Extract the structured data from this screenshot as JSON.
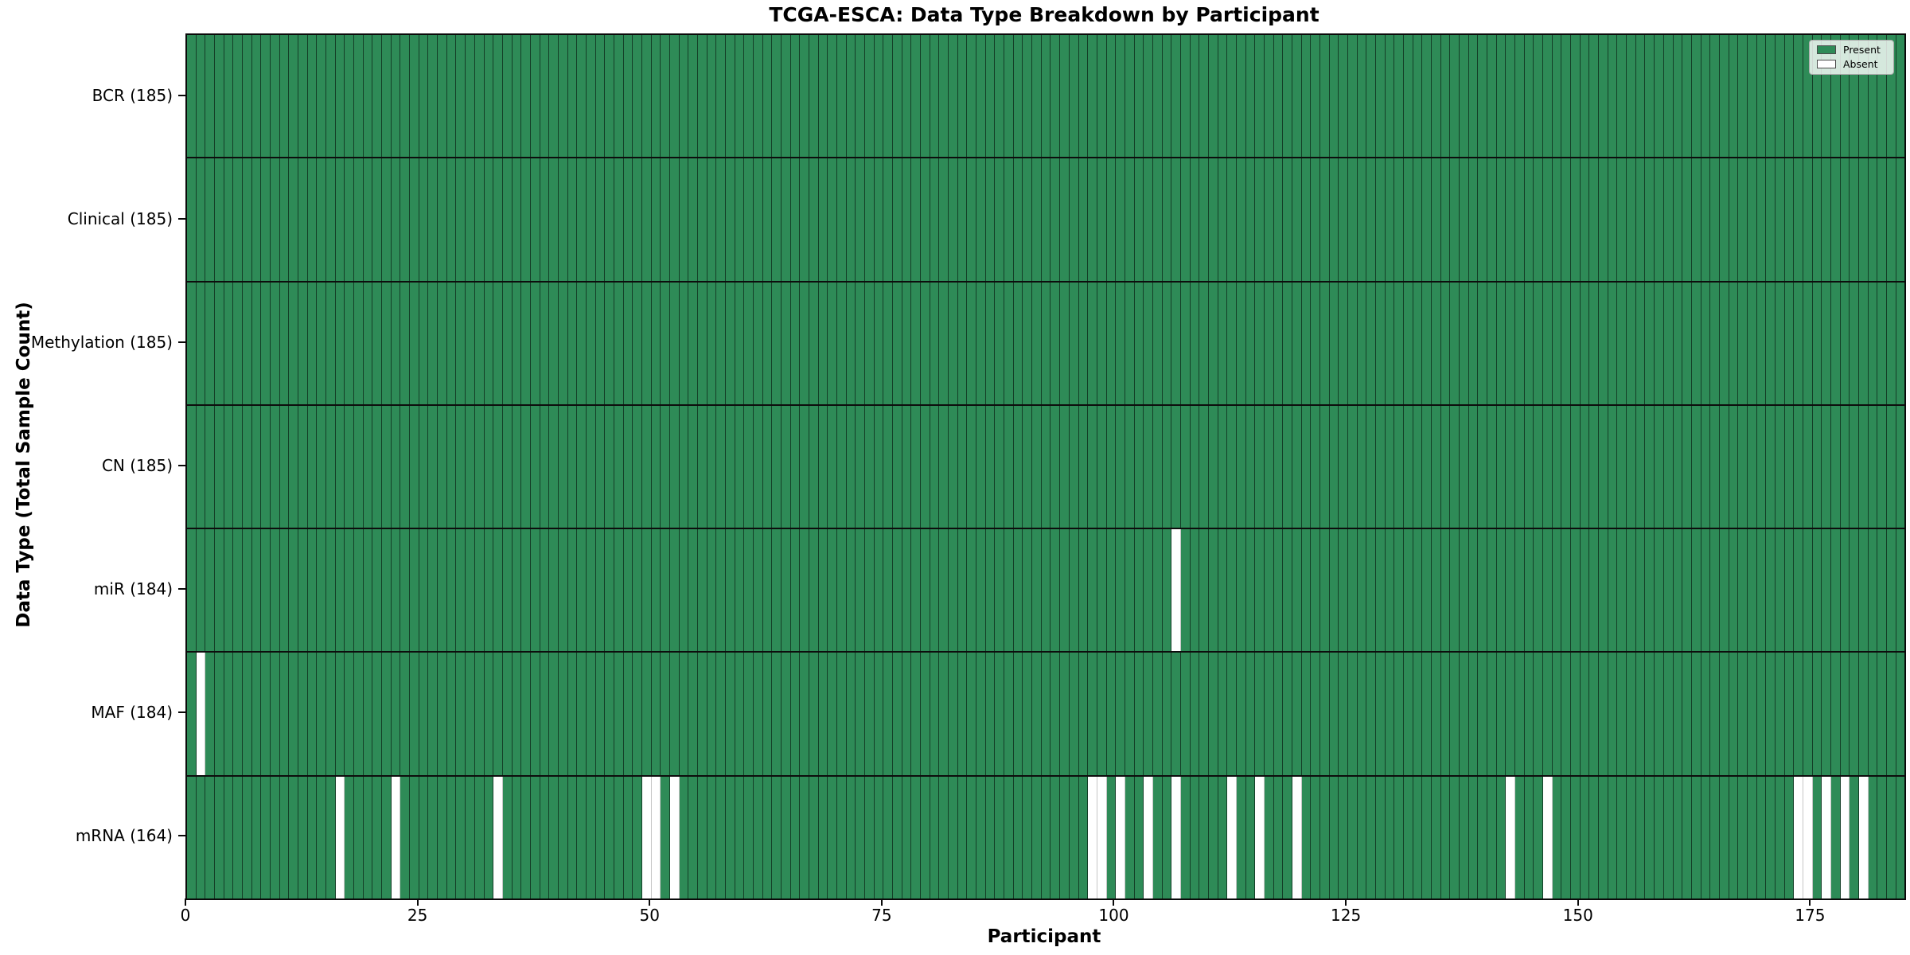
{
  "chart_data": {
    "type": "heatmap",
    "title": "TCGA-ESCA: Data Type Breakdown by Participant",
    "xlabel": "Participant",
    "ylabel": "Data Type (Total Sample Count)",
    "n_participants": 185,
    "xlim": [
      0,
      185
    ],
    "x_ticks": [
      0,
      25,
      50,
      75,
      100,
      125,
      150,
      175
    ],
    "rows": [
      {
        "label": "BCR (185)",
        "data_type": "BCR",
        "present_count": 185,
        "absent_participants": []
      },
      {
        "label": "Clinical (185)",
        "data_type": "Clinical",
        "present_count": 185,
        "absent_participants": []
      },
      {
        "label": "Methylation (185)",
        "data_type": "Methylation",
        "present_count": 185,
        "absent_participants": []
      },
      {
        "label": "CN (185)",
        "data_type": "CN",
        "present_count": 185,
        "absent_participants": []
      },
      {
        "label": "miR (184)",
        "data_type": "miR",
        "present_count": 184,
        "absent_participants": [
          106
        ]
      },
      {
        "label": "MAF (184)",
        "data_type": "MAF",
        "present_count": 184,
        "absent_participants": [
          1
        ]
      },
      {
        "label": "mRNA (164)",
        "data_type": "mRNA",
        "present_count": 164,
        "absent_participants": [
          16,
          22,
          33,
          49,
          50,
          52,
          97,
          98,
          100,
          103,
          106,
          112,
          115,
          119,
          142,
          146,
          173,
          174,
          176,
          178,
          180
        ]
      }
    ],
    "legend": [
      {
        "label": "Present",
        "color": "#2e8b57"
      },
      {
        "label": "Absent",
        "color": "#ffffff"
      }
    ],
    "colors": {
      "present": "#2e8b57",
      "absent": "#ffffff",
      "bar_edge": "rgba(0,0,0,0.55)",
      "row_separator": "#0d0d0d",
      "spine": "#0a0a0a",
      "background": "#ffffff"
    },
    "grid": false,
    "legend_position": "upper right"
  }
}
